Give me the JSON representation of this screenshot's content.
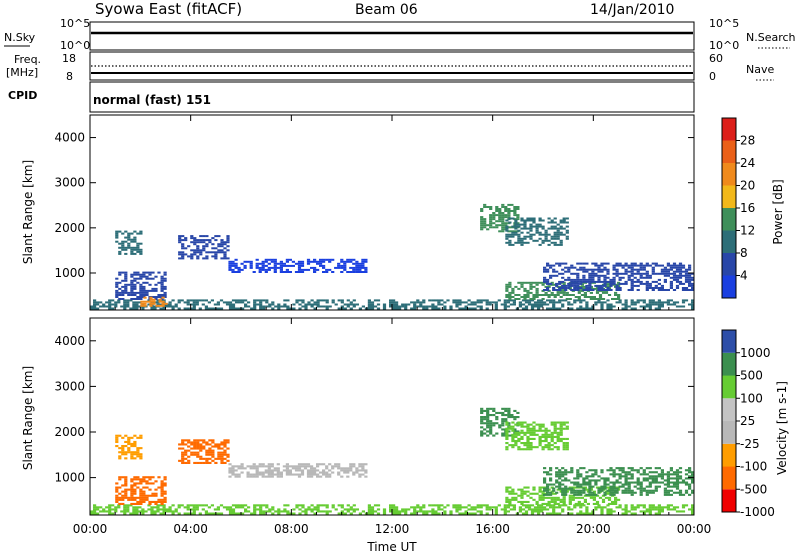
{
  "header": {
    "station": "Syowa East (fitACF)",
    "beam": "Beam 06",
    "date": "14/Jan/2010"
  },
  "status_panels": {
    "nsky_label": "N.Sky",
    "nsearch_label": "N.Search",
    "nsky_ticks": [
      "10^5",
      "10^0"
    ],
    "freq_label_1": "Freq.",
    "freq_label_2": "[MHz]",
    "freq_ticks": [
      "18",
      "8"
    ],
    "nave_ticks": [
      "60",
      "0"
    ],
    "nave_label": "Nave",
    "cpid_label": "CPID",
    "cpid_value": "normal (fast) 151"
  },
  "colors": {
    "power_scale": [
      "#1a3fe0",
      "#2846a8",
      "#2d6e78",
      "#3f8f5a",
      "#f2b81a",
      "#f08a1c",
      "#ea6018",
      "#dc1f1a"
    ],
    "velocity_scale": [
      "#f00000",
      "#ff6a00",
      "#ff9d00",
      "#b8b8b8",
      "#c4c4c4",
      "#66cc33",
      "#3b8f4f",
      "#2d4ea8"
    ]
  },
  "chart_data": [
    {
      "type": "heatmap",
      "title": "",
      "xlabel": "",
      "ylabel": "Slant Range [km]",
      "xlim": [
        "00:00",
        "00:00"
      ],
      "ylim": [
        180,
        4500
      ],
      "yticks": [
        1000,
        2000,
        3000,
        4000
      ],
      "colorbar_label": "Power [dB]",
      "colorbar_ticks": [
        "4",
        "8",
        "12",
        "16",
        "20",
        "24",
        "28"
      ],
      "regions": [
        {
          "t0": 0.0,
          "t1": 24.0,
          "r0": 190,
          "r1": 380,
          "level": 2
        },
        {
          "t0": 1.0,
          "t1": 3.0,
          "r0": 400,
          "r1": 1000,
          "level": 1
        },
        {
          "t0": 1.0,
          "t1": 2.0,
          "r0": 1400,
          "r1": 1900,
          "level": 2
        },
        {
          "t0": 2.0,
          "t1": 3.0,
          "r0": 250,
          "r1": 450,
          "level": 5
        },
        {
          "t0": 3.5,
          "t1": 5.5,
          "r0": 1300,
          "r1": 1800,
          "level": 1
        },
        {
          "t0": 5.5,
          "t1": 11.0,
          "r0": 1000,
          "r1": 1300,
          "level": 0
        },
        {
          "t0": 15.5,
          "t1": 17.0,
          "r0": 1900,
          "r1": 2500,
          "level": 3
        },
        {
          "t0": 16.5,
          "t1": 19.0,
          "r0": 1600,
          "r1": 2200,
          "level": 2
        },
        {
          "t0": 16.5,
          "t1": 21.0,
          "r0": 400,
          "r1": 800,
          "level": 3
        },
        {
          "t0": 18.0,
          "t1": 24.0,
          "r0": 600,
          "r1": 1200,
          "level": 1
        }
      ]
    },
    {
      "type": "heatmap",
      "title": "",
      "xlabel": "Time UT",
      "ylabel": "Slant Range [km]",
      "xticks": [
        "00:00",
        "04:00",
        "08:00",
        "12:00",
        "16:00",
        "20:00",
        "00:00"
      ],
      "ylim": [
        180,
        4500
      ],
      "yticks": [
        1000,
        2000,
        3000,
        4000
      ],
      "colorbar_label": "Velocity [m s-1]",
      "colorbar_ticks": [
        "1000",
        "500",
        "100",
        "25",
        "-25",
        "-100",
        "-500",
        "-1000"
      ],
      "regions": [
        {
          "t0": 0.0,
          "t1": 24.0,
          "r0": 190,
          "r1": 380,
          "level": 5
        },
        {
          "t0": 1.0,
          "t1": 3.0,
          "r0": 400,
          "r1": 1000,
          "level": 1
        },
        {
          "t0": 1.0,
          "t1": 2.0,
          "r0": 1400,
          "r1": 1900,
          "level": 2
        },
        {
          "t0": 3.5,
          "t1": 5.5,
          "r0": 1300,
          "r1": 1800,
          "level": 1
        },
        {
          "t0": 5.5,
          "t1": 11.0,
          "r0": 1000,
          "r1": 1300,
          "level": 3
        },
        {
          "t0": 15.5,
          "t1": 17.0,
          "r0": 1900,
          "r1": 2500,
          "level": 6
        },
        {
          "t0": 16.5,
          "t1": 19.0,
          "r0": 1600,
          "r1": 2200,
          "level": 5
        },
        {
          "t0": 16.5,
          "t1": 21.0,
          "r0": 400,
          "r1": 800,
          "level": 5
        },
        {
          "t0": 18.0,
          "t1": 24.0,
          "r0": 600,
          "r1": 1200,
          "level": 6
        }
      ]
    }
  ]
}
